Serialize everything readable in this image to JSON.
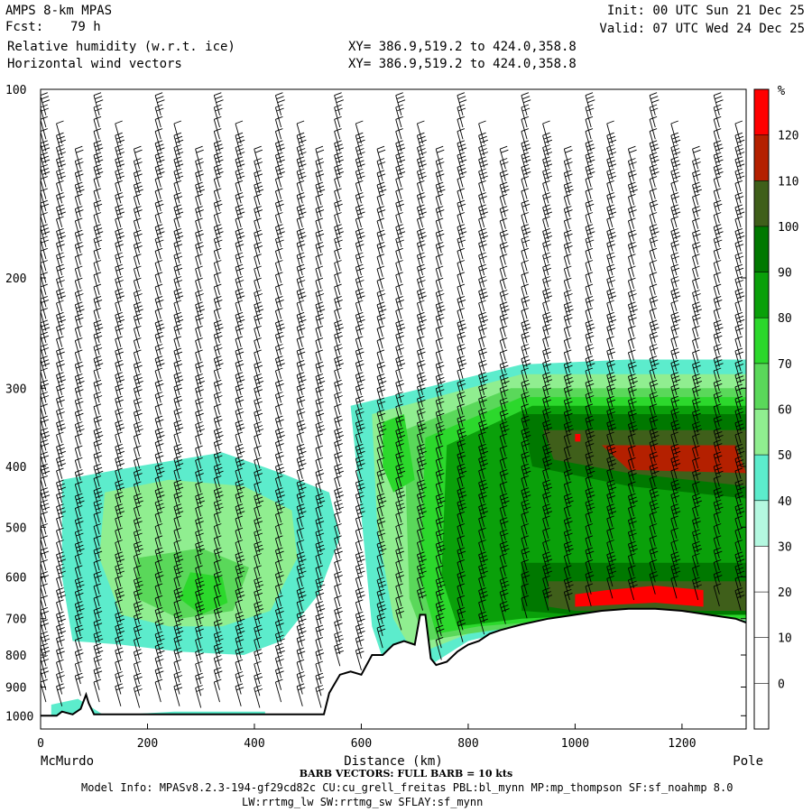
{
  "header": {
    "model_name": "AMPS 8-km MPAS",
    "forecast_label": "Fcst:",
    "forecast_hours": "79 h",
    "field1": "Relative humidity (w.r.t. ice)",
    "field2": "Horizontal wind vectors",
    "xy1": "XY= 386.9,519.2 to 424.0,358.8",
    "xy2": "XY= 386.9,519.2 to 424.0,358.8",
    "init": "Init: 00 UTC Sun 21 Dec 25",
    "valid": "Valid: 07 UTC Wed 24 Dec 25"
  },
  "footer": {
    "barb_info": "BARB VECTORS: FULL BARB = 10 kts",
    "model_info": "Model Info: MPASv8.2.3-194-gf29cd82c CU:cu_grell_freitas PBL:bl_mynn MP:mp_thompson SF:sf_noahmp 8.0",
    "model_info2": "LW:rrtmg_lw SW:rrtmg_sw SFLAY:sf_mynn"
  },
  "chart_data": {
    "type": "heatmap",
    "xlabel": "Distance (km)",
    "ylabel": "",
    "x_start_label": "McMurdo",
    "x_end_label": "Pole",
    "xlim": [
      0,
      1320
    ],
    "ylim": [
      1050,
      100
    ],
    "y_scale": "log-pressure",
    "x_ticks": [
      0,
      200,
      400,
      600,
      800,
      1000,
      1200
    ],
    "y_ticks": [
      100,
      200,
      300,
      400,
      500,
      600,
      700,
      800,
      900,
      1000
    ],
    "colorbar": {
      "unit": "%",
      "levels": [
        0,
        10,
        20,
        30,
        40,
        50,
        60,
        70,
        80,
        90,
        100,
        110,
        120
      ],
      "colors": [
        "#ffffff",
        "#ffffff",
        "#ffffff",
        "#ffffff",
        "#b4f8e0",
        "#5ceccc",
        "#90ee90",
        "#5ad85a",
        "#2cd82c",
        "#0aa00a",
        "#007800",
        "#3f5f1a",
        "#b42000",
        "#ff0000"
      ]
    },
    "terrain": {
      "x": [
        0,
        30,
        40,
        60,
        75,
        85,
        90,
        100,
        110,
        200,
        300,
        400,
        500,
        530,
        540,
        560,
        580,
        600,
        620,
        640,
        660,
        680,
        700,
        710,
        720,
        730,
        740,
        760,
        780,
        800,
        820,
        840,
        860,
        900,
        950,
        1000,
        1050,
        1100,
        1150,
        1200,
        1250,
        1300,
        1320
      ],
      "p": [
        1000,
        1000,
        985,
        995,
        975,
        925,
        955,
        995,
        995,
        995,
        995,
        995,
        995,
        995,
        920,
        860,
        850,
        860,
        800,
        800,
        770,
        760,
        770,
        690,
        690,
        810,
        830,
        820,
        790,
        770,
        760,
        740,
        730,
        715,
        700,
        690,
        680,
        675,
        675,
        680,
        690,
        700,
        710
      ]
    },
    "rh_regions": [
      {
        "level": 40,
        "points": [
          [
            20,
            1050
          ],
          [
            20,
            960
          ],
          [
            70,
            940
          ],
          [
            120,
            1000
          ],
          [
            250,
            985
          ],
          [
            420,
            985
          ],
          [
            420,
            1050
          ]
        ]
      },
      {
        "level": 40,
        "points": [
          [
            40,
            420
          ],
          [
            180,
            400
          ],
          [
            340,
            380
          ],
          [
            450,
            410
          ],
          [
            540,
            440
          ],
          [
            560,
            520
          ],
          [
            520,
            640
          ],
          [
            450,
            760
          ],
          [
            380,
            800
          ],
          [
            260,
            790
          ],
          [
            150,
            770
          ],
          [
            60,
            760
          ],
          [
            40,
            600
          ]
        ]
      },
      {
        "level": 50,
        "points": [
          [
            120,
            440
          ],
          [
            240,
            420
          ],
          [
            380,
            430
          ],
          [
            470,
            470
          ],
          [
            480,
            560
          ],
          [
            430,
            680
          ],
          [
            340,
            720
          ],
          [
            240,
            720
          ],
          [
            150,
            690
          ],
          [
            110,
            560
          ]
        ]
      },
      {
        "level": 60,
        "points": [
          [
            180,
            560
          ],
          [
            300,
            540
          ],
          [
            390,
            580
          ],
          [
            360,
            680
          ],
          [
            260,
            700
          ],
          [
            180,
            650
          ]
        ]
      },
      {
        "level": 70,
        "points": [
          [
            280,
            590
          ],
          [
            340,
            600
          ],
          [
            350,
            660
          ],
          [
            300,
            690
          ],
          [
            260,
            650
          ]
        ]
      },
      {
        "level": 40,
        "points": [
          [
            580,
            320
          ],
          [
            900,
            275
          ],
          [
            1100,
            270
          ],
          [
            1320,
            270
          ],
          [
            1320,
            720
          ],
          [
            1000,
            690
          ],
          [
            800,
            760
          ],
          [
            720,
            840
          ],
          [
            650,
            860
          ],
          [
            620,
            720
          ],
          [
            600,
            480
          ]
        ]
      },
      {
        "level": 50,
        "points": [
          [
            620,
            330
          ],
          [
            900,
            285
          ],
          [
            1320,
            285
          ],
          [
            1320,
            705
          ],
          [
            1000,
            695
          ],
          [
            800,
            740
          ],
          [
            700,
            800
          ],
          [
            660,
            700
          ],
          [
            630,
            500
          ]
        ]
      },
      {
        "level": 60,
        "points": [
          [
            680,
            350
          ],
          [
            880,
            300
          ],
          [
            1320,
            300
          ],
          [
            1320,
            700
          ],
          [
            1000,
            700
          ],
          [
            800,
            740
          ],
          [
            720,
            760
          ],
          [
            690,
            650
          ]
        ]
      },
      {
        "level": 70,
        "points": [
          [
            720,
            360
          ],
          [
            900,
            310
          ],
          [
            1320,
            310
          ],
          [
            1320,
            700
          ],
          [
            1000,
            700
          ],
          [
            820,
            720
          ],
          [
            740,
            740
          ],
          [
            710,
            600
          ]
        ]
      },
      {
        "level": 80,
        "points": [
          [
            760,
            370
          ],
          [
            920,
            320
          ],
          [
            1320,
            320
          ],
          [
            1320,
            690
          ],
          [
            1050,
            690
          ],
          [
            900,
            700
          ],
          [
            780,
            720
          ],
          [
            750,
            600
          ]
        ]
      },
      {
        "level": 90,
        "points": [
          [
            900,
            330
          ],
          [
            1320,
            330
          ],
          [
            1320,
            450
          ],
          [
            1100,
            430
          ],
          [
            920,
            400
          ]
        ]
      },
      {
        "level": 90,
        "points": [
          [
            900,
            570
          ],
          [
            1320,
            570
          ],
          [
            1320,
            690
          ],
          [
            1000,
            690
          ],
          [
            900,
            680
          ]
        ]
      },
      {
        "level": 100,
        "points": [
          [
            940,
            350
          ],
          [
            1320,
            350
          ],
          [
            1320,
            430
          ],
          [
            1100,
            410
          ],
          [
            960,
            390
          ]
        ]
      },
      {
        "level": 100,
        "points": [
          [
            950,
            610
          ],
          [
            1320,
            610
          ],
          [
            1320,
            680
          ],
          [
            1000,
            680
          ],
          [
            950,
            670
          ]
        ]
      },
      {
        "level": 110,
        "points": [
          [
            1050,
            370
          ],
          [
            1300,
            370
          ],
          [
            1320,
            410
          ],
          [
            1100,
            405
          ]
        ]
      },
      {
        "level": 120,
        "points": [
          [
            1000,
            640
          ],
          [
            1060,
            630
          ],
          [
            1150,
            620
          ],
          [
            1240,
            630
          ],
          [
            1240,
            670
          ],
          [
            1150,
            660
          ],
          [
            1000,
            670
          ]
        ]
      },
      {
        "level": 120,
        "points": [
          [
            1000,
            355
          ],
          [
            1010,
            355
          ],
          [
            1010,
            365
          ],
          [
            1000,
            365
          ]
        ]
      },
      {
        "level": 70,
        "points": [
          [
            640,
            340
          ],
          [
            680,
            330
          ],
          [
            700,
            420
          ],
          [
            660,
            440
          ],
          [
            640,
            400
          ]
        ]
      }
    ],
    "barb_columns_x": [
      10,
      40,
      75,
      110,
      150,
      185,
      225,
      260,
      300,
      335,
      375,
      410,
      450,
      490,
      525,
      560,
      600,
      640,
      675,
      715,
      750,
      790,
      830,
      870,
      910,
      950,
      990,
      1030,
      1070,
      1110,
      1150,
      1190,
      1230,
      1270,
      1310
    ]
  }
}
